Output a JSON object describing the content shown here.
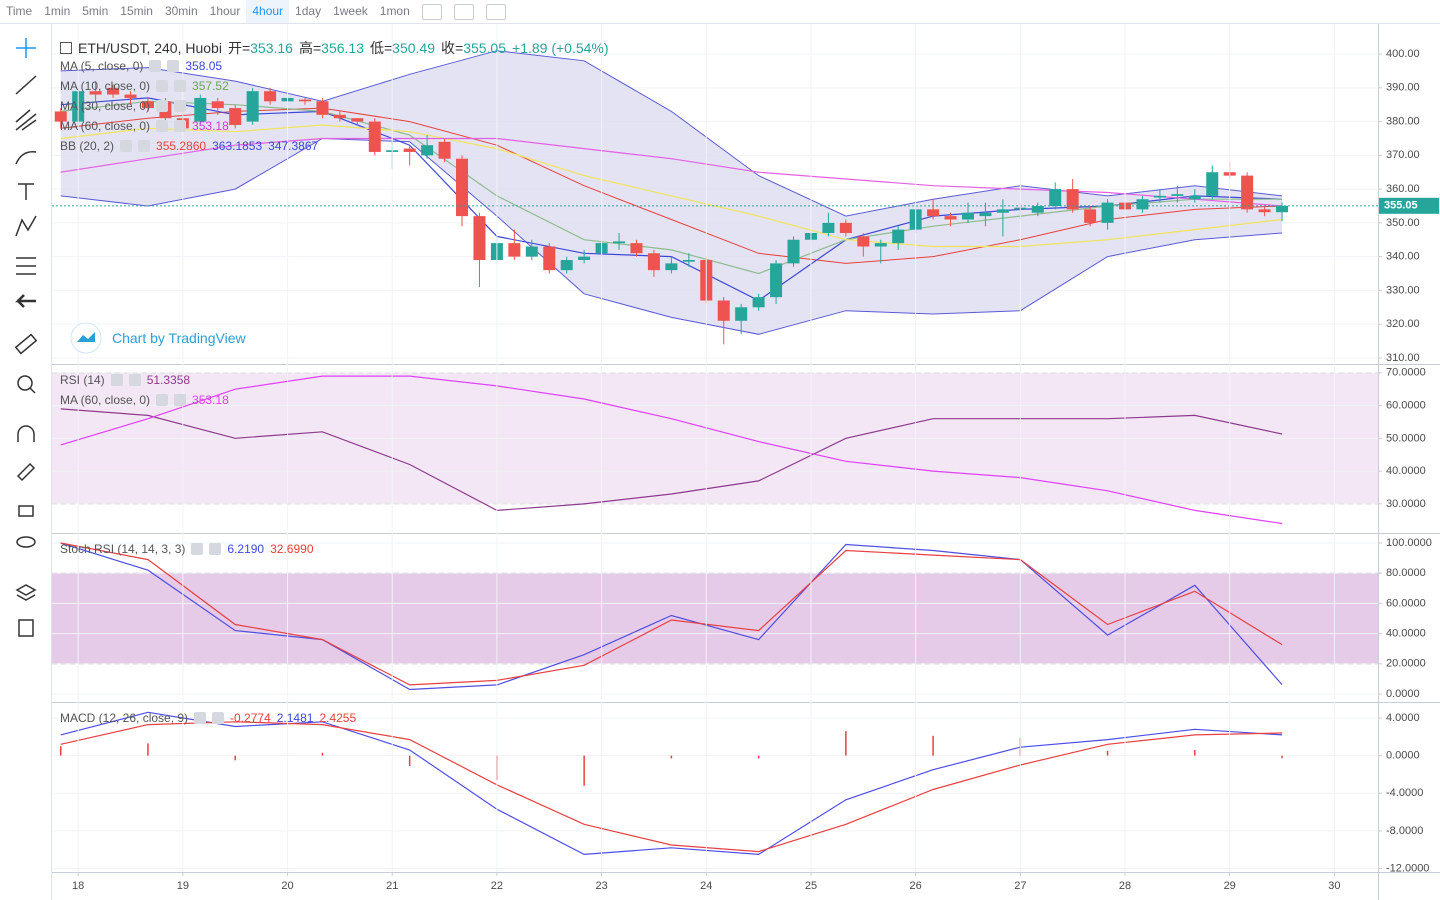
{
  "toolbar": {
    "intervals": [
      "Time",
      "1min",
      "5min",
      "15min",
      "30min",
      "1hour",
      "4hour",
      "1day",
      "1week",
      "1mon"
    ],
    "active": "4hour"
  },
  "symbol": "ETH/USDT, 240, Huobi",
  "ohlc_header": [
    {
      "label": "开=",
      "value": 353.16
    },
    {
      "label": "高=",
      "value": 356.13
    },
    {
      "label": "低=",
      "value": 350.49
    },
    {
      "label": "收=",
      "value": 355.05
    }
  ],
  "change": "+1.89 (+0.54%)",
  "watermark": "Chart by TradingView",
  "chart_data": [
    {
      "type": "candlestick",
      "xlim": [
        -0.5,
        75.5
      ],
      "ylim": [
        308.2,
        408.9
      ],
      "grid": true,
      "yticks": [
        {
          "value": 400,
          "label": "400.00"
        },
        {
          "value": 390,
          "label": "390.00"
        },
        {
          "value": 380,
          "label": "380.00"
        },
        {
          "value": 370,
          "label": "370.00"
        },
        {
          "value": 360,
          "label": "360.00"
        },
        {
          "value": 350,
          "label": "350.00"
        },
        {
          "value": 340,
          "label": "340.00"
        },
        {
          "value": 330,
          "label": "330.00"
        },
        {
          "value": 320,
          "label": "320.00"
        },
        {
          "value": 310,
          "label": "310.00"
        }
      ],
      "candles": {
        "up_color": "#26a69a",
        "down_color": "#ef5350",
        "open": [
          383,
          380,
          389,
          390,
          388,
          386,
          386,
          381,
          380,
          386,
          384,
          380,
          389,
          386,
          386.5,
          386,
          382,
          381,
          380,
          371,
          372,
          370,
          374,
          369,
          352,
          339,
          344,
          340,
          343,
          336,
          339,
          341,
          344,
          344,
          341,
          336,
          338.5,
          339,
          327,
          321,
          325,
          328,
          338,
          345,
          347,
          350,
          346,
          343,
          344,
          348,
          354,
          352,
          351,
          352,
          353,
          354,
          353,
          355,
          360,
          354,
          350,
          356,
          354,
          357.5,
          358,
          357,
          358,
          365,
          364,
          354,
          353.16
        ],
        "high": [
          384,
          390,
          392,
          391,
          389,
          387,
          387,
          383,
          388,
          387,
          385,
          390,
          390,
          389,
          387,
          387,
          383,
          381,
          381,
          374,
          373,
          376,
          375,
          370,
          353,
          346,
          348,
          345,
          344,
          340,
          342,
          345,
          347,
          345,
          342,
          340,
          341,
          340,
          328,
          326,
          329,
          339,
          346,
          348,
          353,
          351,
          347,
          345,
          349,
          355,
          357,
          353,
          356,
          356,
          357,
          356,
          356,
          362,
          363,
          355,
          357,
          358,
          358,
          360,
          361,
          360,
          367,
          368,
          365,
          355,
          356.13
        ],
        "low": [
          378,
          379,
          386,
          387,
          385,
          383,
          380,
          377,
          379,
          382,
          378,
          379,
          385,
          385,
          385,
          381,
          380,
          379,
          370,
          366,
          367,
          369,
          368,
          349,
          331,
          338,
          339,
          339,
          335,
          335,
          338,
          340,
          342,
          340,
          334,
          335,
          337,
          326,
          314,
          317,
          324,
          326,
          337,
          343,
          346,
          346,
          340,
          338,
          342,
          347,
          351,
          349,
          350,
          349,
          346,
          351,
          352,
          354,
          353,
          349,
          348,
          353,
          353,
          356,
          356,
          356,
          357,
          363,
          353,
          352,
          350.49
        ],
        "close": [
          380,
          389,
          388,
          388,
          387,
          384,
          381,
          378,
          387,
          384,
          379,
          389,
          386,
          387,
          386,
          382,
          381,
          380,
          371,
          371.5,
          371,
          373,
          369,
          352,
          339,
          344,
          340,
          343,
          336,
          339,
          340,
          344,
          344.5,
          341,
          336,
          338,
          339,
          327,
          321,
          325,
          328,
          338,
          345,
          347,
          350,
          347,
          343,
          344,
          348,
          354,
          352,
          351,
          353,
          353,
          354,
          354.5,
          355,
          360,
          354,
          350,
          356,
          354,
          357,
          358,
          358.5,
          358,
          365,
          364,
          354,
          353.16,
          355.05
        ]
      },
      "bollinger": {
        "line_color": "#5b5bd6",
        "middle_color": "#e8413c",
        "fill": "#dcdcf0",
        "x": [
          0,
          5,
          10,
          15,
          20,
          25,
          30,
          35,
          40,
          45,
          50,
          55,
          60,
          65,
          70
        ],
        "upper": [
          395,
          396,
          392,
          386,
          394,
          401,
          398,
          383,
          364,
          352,
          357,
          361,
          358,
          361,
          358
        ],
        "middle": [
          378,
          381,
          383,
          384,
          380,
          373,
          361,
          351,
          341,
          338,
          340,
          345,
          351,
          354,
          355
        ],
        "lower": [
          358,
          355,
          360,
          375,
          374,
          352,
          329,
          322,
          317,
          324,
          323,
          324,
          340,
          345,
          347
        ]
      },
      "series": [
        {
          "color": "#3d49d6",
          "x": [
            0,
            5,
            10,
            15,
            20,
            25,
            30,
            35,
            40,
            45,
            50,
            55,
            60,
            65,
            70
          ],
          "values": [
            385,
            387,
            382,
            383,
            373,
            346,
            341,
            340,
            327,
            345,
            352,
            354,
            355,
            358,
            357
          ]
        },
        {
          "color": "#8fbc8f",
          "x": [
            0,
            5,
            10,
            15,
            20,
            25,
            30,
            35,
            40,
            45,
            50,
            55,
            60,
            65,
            70
          ],
          "values": [
            383,
            386,
            385,
            383,
            376,
            358,
            345,
            342,
            335,
            345,
            349,
            352,
            355,
            357,
            357
          ]
        },
        {
          "color": "#f2e45a",
          "x": [
            0,
            5,
            10,
            15,
            20,
            25,
            30,
            35,
            40,
            45,
            50,
            55,
            60,
            65,
            70
          ],
          "values": [
            375,
            378,
            377,
            379,
            377,
            372,
            364,
            358,
            352,
            345,
            343,
            343,
            345,
            348,
            351
          ]
        },
        {
          "color": "#e55fe5",
          "x": [
            0,
            5,
            10,
            15,
            20,
            25,
            30,
            35,
            40,
            45,
            50,
            55,
            60,
            65,
            70
          ],
          "values": [
            365,
            369,
            373,
            375,
            375,
            375,
            372,
            369,
            365,
            363,
            361,
            360,
            359,
            357,
            355
          ]
        }
      ],
      "last_price": 355.05,
      "last_price_color": "#26a69a",
      "legend": [
        {
          "name": "MA (5, close, 0)",
          "values": [
            "358.05"
          ],
          "colors": [
            "#3d49d6"
          ]
        },
        {
          "name": "MA (10, close, 0)",
          "values": [
            "357.52"
          ],
          "colors": [
            "#6aa84f"
          ]
        },
        {
          "name": "MA (30, close, 0)",
          "values": [],
          "colors": []
        },
        {
          "name": "MA (60, close, 0)",
          "values": [
            "353.18"
          ],
          "colors": [
            "#d63ad6"
          ]
        },
        {
          "name": "BB (20, 2)",
          "values": [
            "355.2860",
            "363.1853",
            "347.3867"
          ],
          "colors": [
            "#e8413c",
            "#3d49d6",
            "#3d49d6"
          ]
        }
      ]
    },
    {
      "type": "line",
      "xlim": [
        -0.5,
        75.5
      ],
      "ylim": [
        21.1,
        72.7
      ],
      "grid": true,
      "band": [
        30,
        70
      ],
      "band_fill": "#f3e6f5",
      "yticks": [
        {
          "value": 70,
          "label": "70.0000"
        },
        {
          "value": 60,
          "label": "60.0000"
        },
        {
          "value": 50,
          "label": "50.0000"
        },
        {
          "value": 40,
          "label": "40.0000"
        },
        {
          "value": 30,
          "label": "30.0000"
        }
      ],
      "series": [
        {
          "color": "#8e3a8e",
          "x": [
            0,
            5,
            10,
            15,
            20,
            25,
            30,
            35,
            40,
            45,
            50,
            55,
            60,
            65,
            70
          ],
          "values": [
            59,
            57,
            50,
            52,
            42,
            28,
            30,
            33,
            37,
            50,
            56,
            56,
            56,
            57,
            51.34
          ]
        },
        {
          "color": "#e040fb",
          "x": [
            0,
            5,
            10,
            15,
            20,
            25,
            30,
            35,
            40,
            45,
            50,
            55,
            60,
            65,
            70
          ],
          "values": [
            48,
            56,
            65,
            69,
            69,
            66,
            62,
            56,
            49,
            43,
            40,
            38,
            34,
            28,
            24
          ]
        }
      ],
      "legend": [
        {
          "name": "RSI (14)",
          "values": [
            "51.3358"
          ],
          "colors": [
            "#8e3a8e"
          ]
        },
        {
          "name": "MA (60, close, 0)",
          "values": [
            "353.18"
          ],
          "colors": [
            "#e040fb"
          ]
        }
      ]
    },
    {
      "type": "line",
      "xlim": [
        -0.5,
        75.5
      ],
      "ylim": [
        -5.3,
        106.6
      ],
      "grid": true,
      "band": [
        20,
        80
      ],
      "band_fill": "#e6cbe8",
      "yticks": [
        {
          "value": 100,
          "label": "100.0000"
        },
        {
          "value": 80,
          "label": "80.0000"
        },
        {
          "value": 60,
          "label": "60.0000"
        },
        {
          "value": 40,
          "label": "40.0000"
        },
        {
          "value": 20,
          "label": "20.0000"
        },
        {
          "value": 0,
          "label": "0.0000"
        }
      ],
      "series": [
        {
          "color": "#4f4fe0",
          "x": [
            0,
            5,
            10,
            15,
            20,
            25,
            30,
            35,
            40,
            45,
            50,
            55,
            60,
            65,
            70
          ],
          "values": [
            100,
            82,
            42,
            36,
            3,
            6,
            26,
            52,
            36,
            99,
            95,
            89,
            39,
            72,
            6.2
          ]
        },
        {
          "color": "#e84040",
          "x": [
            0,
            5,
            10,
            15,
            20,
            25,
            30,
            35,
            40,
            45,
            50,
            55,
            60,
            65,
            70
          ],
          "values": [
            100,
            89,
            46,
            36,
            6,
            9,
            19,
            49,
            42,
            95,
            92,
            89,
            46,
            68,
            32.7
          ]
        }
      ],
      "legend": [
        {
          "name": "Stoch RSI (14, 14, 3, 3)",
          "values": [
            "6.2190",
            "32.6990"
          ],
          "colors": [
            "#3d49d6",
            "#e8413c"
          ]
        }
      ]
    },
    {
      "type": "line",
      "xlim": [
        -0.5,
        75.5
      ],
      "ylim": [
        -12.37,
        5.7
      ],
      "grid": true,
      "yticks": [
        {
          "value": 4,
          "label": "4.0000"
        },
        {
          "value": 0,
          "label": "0.0000"
        },
        {
          "value": -4,
          "label": "-4.0000"
        },
        {
          "value": -8,
          "label": "-8.0000"
        },
        {
          "value": -12,
          "label": "-12.0000"
        }
      ],
      "xticks": [
        {
          "value": 1,
          "label": "18"
        },
        {
          "value": 7,
          "label": "19"
        },
        {
          "value": 13,
          "label": "20"
        },
        {
          "value": 19,
          "label": "21"
        },
        {
          "value": 25,
          "label": "22"
        },
        {
          "value": 31,
          "label": "23"
        },
        {
          "value": 37,
          "label": "24"
        },
        {
          "value": 43,
          "label": "25"
        },
        {
          "value": 49,
          "label": "26"
        },
        {
          "value": 55,
          "label": "27"
        },
        {
          "value": 61,
          "label": "28"
        },
        {
          "value": 67,
          "label": "29"
        },
        {
          "value": 73,
          "label": "30"
        }
      ],
      "series": [
        {
          "color": "#e84040",
          "style": "histogram",
          "x": [
            0,
            5,
            10,
            15,
            20,
            25,
            30,
            35,
            40,
            45,
            50,
            55,
            60,
            65,
            70
          ],
          "values": [
            1,
            1.3,
            -0.5,
            0.3,
            -1.1,
            -2.6,
            -3.2,
            -0.3,
            -0.3,
            2.6,
            2.1,
            1.9,
            0.5,
            0.6,
            -0.28
          ]
        },
        {
          "color": "#4d4dea",
          "x": [
            0,
            5,
            10,
            15,
            20,
            25,
            30,
            35,
            40,
            45,
            50,
            55,
            60,
            65,
            70
          ],
          "values": [
            2.2,
            4.6,
            3.1,
            3.6,
            0.6,
            -5.7,
            -10.5,
            -9.8,
            -10.5,
            -4.7,
            -1.5,
            0.9,
            1.7,
            2.8,
            2.2
          ]
        },
        {
          "color": "#e84040",
          "x": [
            0,
            5,
            10,
            15,
            20,
            25,
            30,
            35,
            40,
            45,
            50,
            55,
            60,
            65,
            70
          ],
          "values": [
            1.2,
            3.3,
            3.6,
            3.3,
            1.7,
            -3.1,
            -7.3,
            -9.5,
            -10.2,
            -7.3,
            -3.6,
            -1,
            1.2,
            2.2,
            2.4
          ]
        }
      ],
      "legend": [
        {
          "name": "MACD (12, 26, close, 9)",
          "values": [
            "-0.2774",
            "2.1481",
            "2.4255"
          ],
          "colors": [
            "#e8413c",
            "#3d49d6",
            "#e8413c"
          ]
        }
      ]
    }
  ]
}
